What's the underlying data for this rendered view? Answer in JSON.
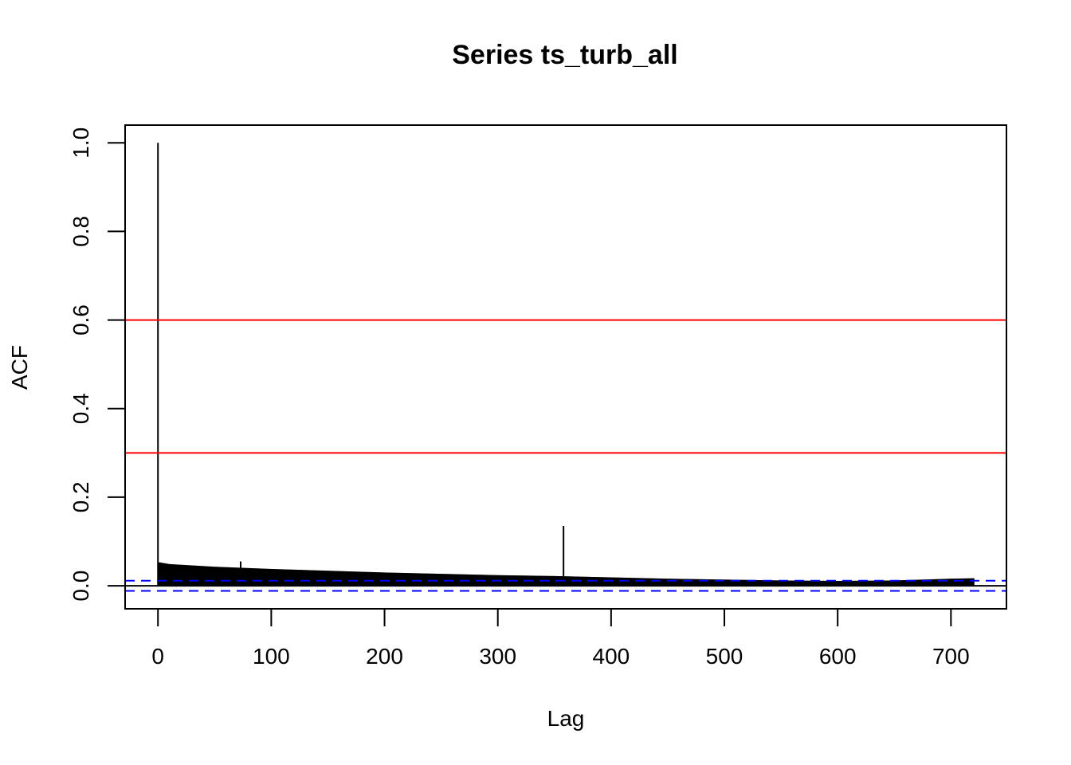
{
  "chart_data": {
    "type": "bar",
    "title": "Series  ts_turb_all",
    "xlabel": "Lag",
    "ylabel": "ACF",
    "xlim": [
      -29,
      749
    ],
    "ylim": [
      -0.052,
      1.04
    ],
    "x_ticks": [
      0,
      100,
      200,
      300,
      400,
      500,
      600,
      700
    ],
    "x_tick_labels": [
      "0",
      "100",
      "200",
      "300",
      "400",
      "500",
      "600",
      "700"
    ],
    "y_ticks": [
      0.0,
      0.2,
      0.4,
      0.6,
      0.8,
      1.0
    ],
    "y_tick_labels": [
      "0.0",
      "0.2",
      "0.4",
      "0.6",
      "0.8",
      "1.0"
    ],
    "max_lag": 720,
    "acf_profile": {
      "lags": [
        0,
        1,
        10,
        50,
        100,
        150,
        200,
        250,
        300,
        350,
        400,
        450,
        500,
        550,
        600,
        650,
        700,
        720
      ],
      "values": [
        1.0,
        0.053,
        0.049,
        0.043,
        0.038,
        0.034,
        0.03,
        0.027,
        0.024,
        0.022,
        0.019,
        0.016,
        0.014,
        0.012,
        0.011,
        0.012,
        0.016,
        0.017
      ]
    },
    "spikes": [
      {
        "lag": 73,
        "value": 0.055
      },
      {
        "lag": 358,
        "value": 0.135
      }
    ],
    "confidence_band": {
      "value": 0.0115,
      "color": "#0000ff",
      "style": "dashed"
    },
    "reference_lines": [
      {
        "value": 0.6,
        "color": "#ff0000"
      },
      {
        "value": 0.3,
        "color": "#ff0000"
      }
    ],
    "zero_line_color": "#000000",
    "bar_color": "#000000",
    "grid": false,
    "legend": "none"
  }
}
